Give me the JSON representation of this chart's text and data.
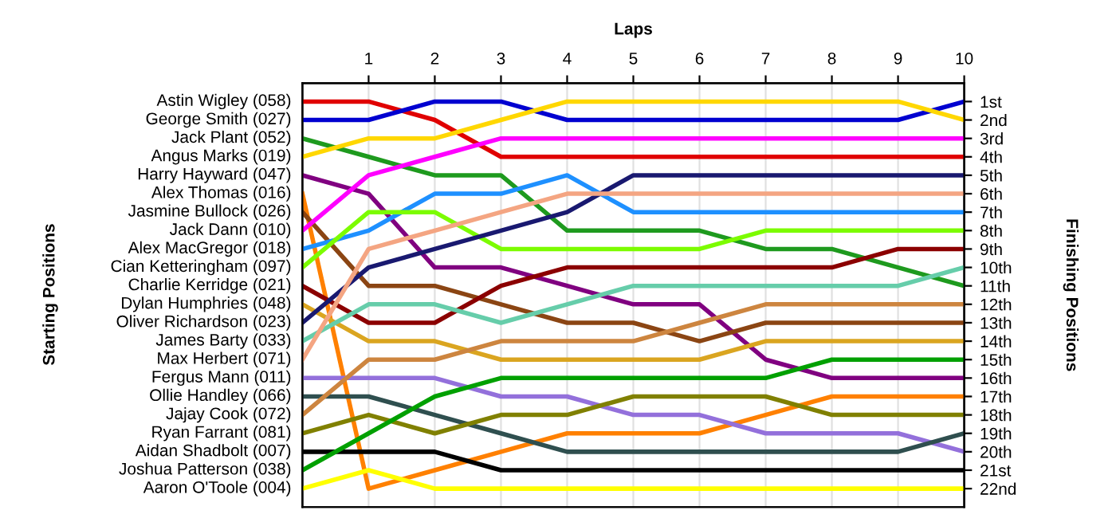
{
  "chart_data": {
    "type": "line",
    "xlabel": "Laps",
    "y2label": "Finishing Positions",
    "annotations": [
      "Starting Positions"
    ],
    "x": [
      0,
      1,
      2,
      3,
      4,
      5,
      6,
      7,
      8,
      9,
      10
    ],
    "xlim": [
      0,
      10
    ],
    "xticks": [
      1,
      2,
      3,
      4,
      5,
      6,
      7,
      8,
      9,
      10
    ],
    "y2lim": [
      23,
      0
    ],
    "y2ticks": [
      {
        "value": 1,
        "label": "1st"
      },
      {
        "value": 2,
        "label": "2nd"
      },
      {
        "value": 3,
        "label": "3rd"
      },
      {
        "value": 4,
        "label": "4th"
      },
      {
        "value": 5,
        "label": "5th"
      },
      {
        "value": 6,
        "label": "6th"
      },
      {
        "value": 7,
        "label": "7th"
      },
      {
        "value": 8,
        "label": "8th"
      },
      {
        "value": 9,
        "label": "9th"
      },
      {
        "value": 10,
        "label": "10th"
      },
      {
        "value": 11,
        "label": "11th"
      },
      {
        "value": 12,
        "label": "12th"
      },
      {
        "value": 13,
        "label": "13th"
      },
      {
        "value": 14,
        "label": "14th"
      },
      {
        "value": 15,
        "label": "15th"
      },
      {
        "value": 16,
        "label": "16th"
      },
      {
        "value": 17,
        "label": "17th"
      },
      {
        "value": 18,
        "label": "18th"
      },
      {
        "value": 19,
        "label": "19th"
      },
      {
        "value": 20,
        "label": "20th"
      },
      {
        "value": 21,
        "label": "21st"
      },
      {
        "value": 22,
        "label": "22nd"
      }
    ],
    "grid": true,
    "marker": "none",
    "line_style": "solid",
    "series": [
      {
        "name": "Astin Wigley (058)",
        "axis": "y2",
        "color": "#e00000",
        "values": [
          1,
          1,
          2,
          4,
          4,
          4,
          4,
          4,
          4,
          4,
          4
        ]
      },
      {
        "name": "George Smith (027)",
        "axis": "y2",
        "color": "#0000d0",
        "values": [
          2,
          2,
          1,
          1,
          2,
          2,
          2,
          2,
          2,
          2,
          1
        ]
      },
      {
        "name": "Jack Plant (052)",
        "axis": "y2",
        "color": "#1e9a1e",
        "values": [
          3,
          4,
          5,
          5,
          8,
          8,
          8,
          9,
          9,
          10,
          11
        ]
      },
      {
        "name": "Angus Marks (019)",
        "axis": "y2",
        "color": "#ffd700",
        "values": [
          4,
          3,
          3,
          2,
          1,
          1,
          1,
          1,
          1,
          1,
          2
        ]
      },
      {
        "name": "Harry Hayward (047)",
        "axis": "y2",
        "color": "#800080",
        "values": [
          5,
          6,
          10,
          10,
          11,
          12,
          12,
          15,
          16,
          16,
          16
        ]
      },
      {
        "name": "Alex Thomas (016)",
        "axis": "y2",
        "color": "#ff8000",
        "values": [
          6,
          22,
          21,
          20,
          19,
          19,
          19,
          18,
          17,
          17,
          17
        ]
      },
      {
        "name": "Jasmine Bullock (026)",
        "axis": "y2",
        "color": "#8b4513",
        "values": [
          7,
          11,
          11,
          12,
          13,
          13,
          14,
          13,
          13,
          13,
          13
        ]
      },
      {
        "name": "Jack Dann (010)",
        "axis": "y2",
        "color": "#ff00ff",
        "values": [
          8,
          5,
          4,
          3,
          3,
          3,
          3,
          3,
          3,
          3,
          3
        ]
      },
      {
        "name": "Alex MacGregor (018)",
        "axis": "y2",
        "color": "#1e90ff",
        "values": [
          9,
          8,
          6,
          6,
          5,
          7,
          7,
          7,
          7,
          7,
          7
        ]
      },
      {
        "name": "Cian Ketteringham (097)",
        "axis": "y2",
        "color": "#7cfc00",
        "values": [
          10,
          7,
          7,
          9,
          9,
          9,
          9,
          8,
          8,
          8,
          8
        ]
      },
      {
        "name": "Charlie Kerridge (021)",
        "axis": "y2",
        "color": "#8b0000",
        "values": [
          11,
          13,
          13,
          11,
          10,
          10,
          10,
          10,
          10,
          9,
          9
        ]
      },
      {
        "name": "Dylan Humphries (048)",
        "axis": "y2",
        "color": "#daa520",
        "values": [
          12,
          14,
          14,
          15,
          15,
          15,
          15,
          14,
          14,
          14,
          14
        ]
      },
      {
        "name": "Oliver Richardson (023)",
        "axis": "y2",
        "color": "#191970",
        "values": [
          13,
          10,
          9,
          8,
          7,
          5,
          5,
          5,
          5,
          5,
          5
        ]
      },
      {
        "name": "James Barty (033)",
        "axis": "y2",
        "color": "#66cdaa",
        "values": [
          14,
          12,
          12,
          13,
          12,
          11,
          11,
          11,
          11,
          11,
          10
        ]
      },
      {
        "name": "Max Herbert (071)",
        "axis": "y2",
        "color": "#f4a582",
        "values": [
          15,
          9,
          8,
          7,
          6,
          6,
          6,
          6,
          6,
          6,
          6
        ]
      },
      {
        "name": "Fergus Mann (011)",
        "axis": "y2",
        "color": "#9370db",
        "values": [
          16,
          16,
          16,
          17,
          17,
          18,
          18,
          19,
          19,
          19,
          20
        ]
      },
      {
        "name": "Ollie Handley (066)",
        "axis": "y2",
        "color": "#2f4f4f",
        "values": [
          17,
          17,
          18,
          19,
          20,
          20,
          20,
          20,
          20,
          20,
          19
        ]
      },
      {
        "name": "Jajay Cook (072)",
        "axis": "y2",
        "color": "#cd853f",
        "values": [
          18,
          15,
          15,
          14,
          14,
          14,
          13,
          12,
          12,
          12,
          12
        ]
      },
      {
        "name": "Ryan Farrant (081)",
        "axis": "y2",
        "color": "#808000",
        "values": [
          19,
          18,
          19,
          18,
          18,
          17,
          17,
          17,
          18,
          18,
          18
        ]
      },
      {
        "name": "Aidan Shadbolt (007)",
        "axis": "y2",
        "color": "#000000",
        "values": [
          20,
          20,
          20,
          21,
          21,
          21,
          21,
          21,
          21,
          21,
          21
        ]
      },
      {
        "name": "Joshua Patterson (038)",
        "axis": "y2",
        "color": "#00a000",
        "values": [
          21,
          19,
          17,
          16,
          16,
          16,
          16,
          16,
          15,
          15,
          15
        ]
      },
      {
        "name": "Aaron O'Toole (004)",
        "axis": "y2",
        "color": "#ffff00",
        "values": [
          22,
          21,
          22,
          22,
          22,
          22,
          22,
          22,
          22,
          22,
          22
        ]
      }
    ]
  }
}
